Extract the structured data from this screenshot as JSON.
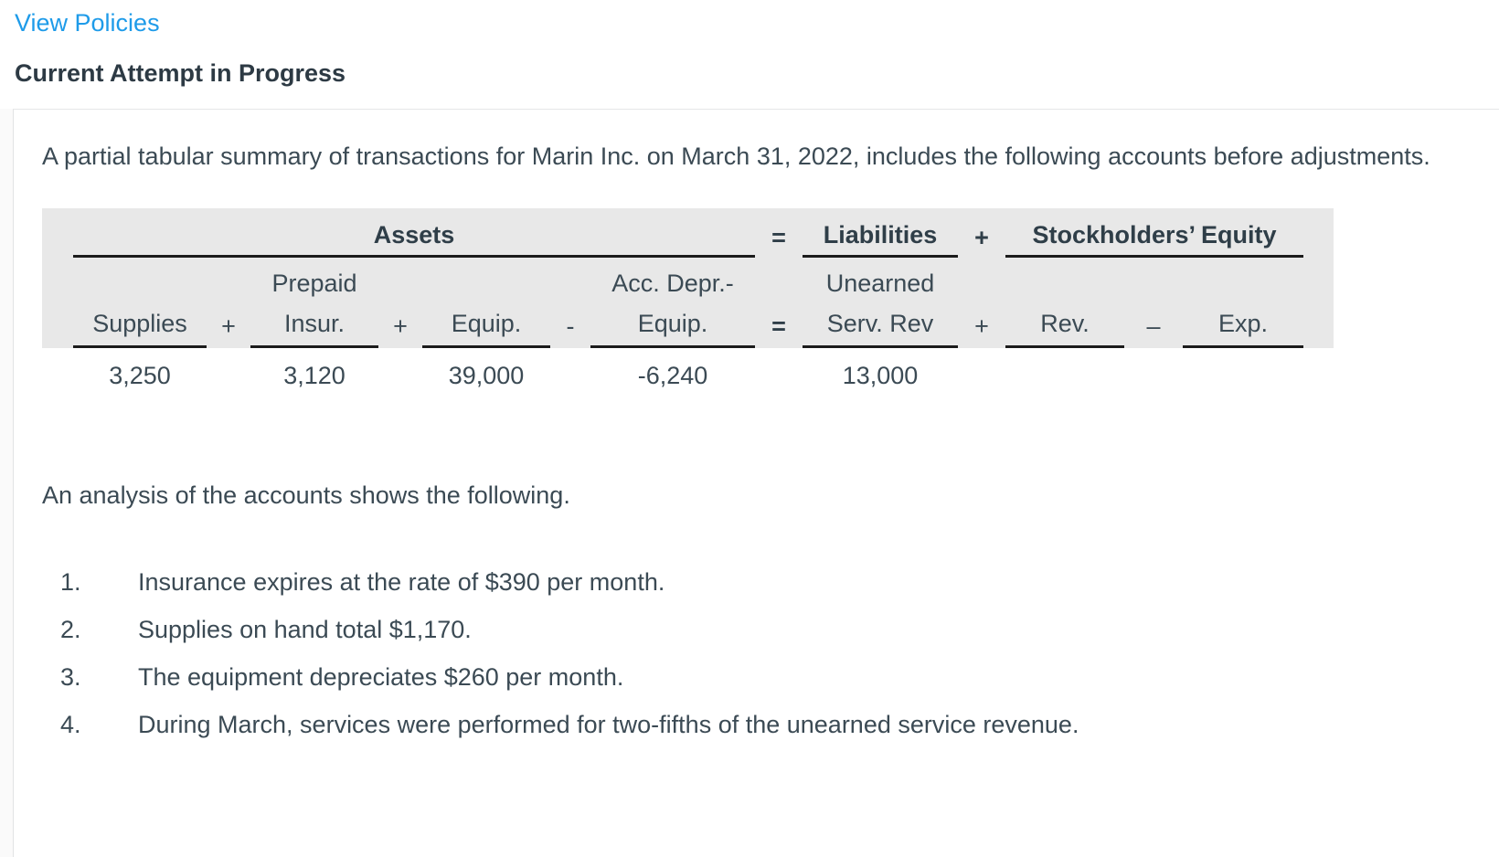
{
  "page": {
    "link_view_policies": "View Policies",
    "heading": "Current Attempt in Progress"
  },
  "problem": {
    "intro": "A partial tabular summary of transactions for Marin Inc. on March 31, 2022, includes the following accounts before adjustments.",
    "analysis_lead": "An analysis of the accounts shows the following.",
    "items": [
      {
        "num": "1.",
        "text": "Insurance expires at the rate of $390 per month."
      },
      {
        "num": "2.",
        "text": "Supplies on hand total $1,170."
      },
      {
        "num": "3.",
        "text": "The equipment depreciates $260 per month."
      },
      {
        "num": "4.",
        "text": "During March, services were performed for two-fifths of the unearned service revenue."
      }
    ]
  },
  "table": {
    "groups": {
      "assets": "Assets",
      "equals": "=",
      "liabilities": "Liabilities",
      "plus": "+",
      "equity": "Stockholders’ Equity"
    },
    "columns": {
      "supplies": {
        "line1": "",
        "line2": "Supplies",
        "value": "3,250"
      },
      "op1": "+",
      "prepaid": {
        "line1": "Prepaid",
        "line2": "Insur.",
        "value": "3,120"
      },
      "op2": "+",
      "equip": {
        "line1": "",
        "line2": "Equip.",
        "value": "39,000"
      },
      "op3": "-",
      "accdepr": {
        "line1": "Acc. Depr.-",
        "line2": "Equip.",
        "value": "-6,240"
      },
      "op4": "=",
      "unearned": {
        "line1": "Unearned",
        "line2": "Serv. Rev",
        "value": "13,000"
      },
      "op5": "+",
      "rev": {
        "line1": "",
        "line2": "Rev.",
        "value": ""
      },
      "op6": "–",
      "exp": {
        "line1": "",
        "line2": "Exp.",
        "value": ""
      }
    }
  },
  "colors": {
    "link_blue": "#1e9be9",
    "body_text": "#3b4a54",
    "heading_text": "#2d3a44",
    "table_background": "#e8e8e8",
    "table_rule": "#1b1b1b",
    "divider": "#e5e6e7"
  }
}
